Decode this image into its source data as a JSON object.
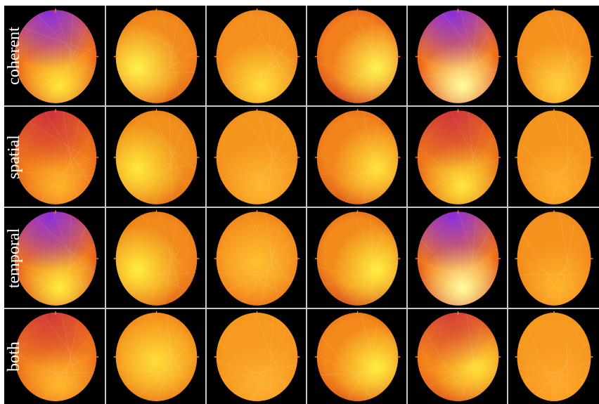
{
  "rows": [
    {
      "label": "coherent",
      "maps": [
        {
          "base": "#f47a1a",
          "blob": "#7a22ff",
          "blob_strength": 0.85,
          "bright": "#ffe83a",
          "bright_spot": "bottom",
          "dark": "#c8262e"
        },
        {
          "base": "#f28a1c",
          "blob": null,
          "blob_strength": 0,
          "bright": "#fff24a",
          "bright_spot": "left",
          "dark": "#e0541a"
        },
        {
          "base": "#f5901e",
          "blob": null,
          "blob_strength": 0,
          "bright": "#ffe03a",
          "bright_spot": "bottom",
          "dark": "#e36a18"
        },
        {
          "base": "#f27f1c",
          "blob": null,
          "blob_strength": 0,
          "bright": "#fff34d",
          "bright_spot": "right",
          "dark": "#c8262e"
        },
        {
          "base": "#f47a1a",
          "blob": "#7a22ff",
          "blob_strength": 0.85,
          "bright": "#ffffa0",
          "bright_spot": "bottom",
          "dark": "#c8262e"
        },
        {
          "base": "#f5921e",
          "blob": null,
          "blob_strength": 0,
          "bright": "#ffd23a",
          "bright_spot": "bottom",
          "dark": "#e86a18"
        }
      ]
    },
    {
      "label": "spatial",
      "maps": [
        {
          "base": "#f0781a",
          "blob": "#c2184a",
          "blob_strength": 0.7,
          "bright": "#ffb42a",
          "bright_spot": "bottom",
          "dark": "#d8441c"
        },
        {
          "base": "#f2901c",
          "blob": null,
          "blob_strength": 0,
          "bright": "#ffe83a",
          "bright_spot": "left",
          "dark": "#e0621a"
        },
        {
          "base": "#f5961e",
          "blob": null,
          "blob_strength": 0,
          "bright": "#ffb830",
          "bright_spot": "bottom",
          "dark": "#ec7a1a"
        },
        {
          "base": "#f2841c",
          "blob": null,
          "blob_strength": 0,
          "bright": "#ffe43a",
          "bright_spot": "right",
          "dark": "#d8441c"
        },
        {
          "base": "#f07e1a",
          "blob": "#c2184a",
          "blob_strength": 0.7,
          "bright": "#ffe83a",
          "bright_spot": "bottom",
          "dark": "#d8441c"
        },
        {
          "base": "#f5961e",
          "blob": null,
          "blob_strength": 0,
          "bright": "#ffae2a",
          "bright_spot": "bottom",
          "dark": "#ec801a"
        }
      ]
    },
    {
      "label": "temporal",
      "maps": [
        {
          "base": "#f0741a",
          "blob": "#7a22ff",
          "blob_strength": 0.85,
          "bright": "#ffee3c",
          "bright_spot": "bottom",
          "dark": "#c8262e"
        },
        {
          "base": "#f28a1c",
          "blob": null,
          "blob_strength": 0,
          "bright": "#ffee3c",
          "bright_spot": "left",
          "dark": "#e0581a"
        },
        {
          "base": "#f5901e",
          "blob": null,
          "blob_strength": 0,
          "bright": "#ffc030",
          "bright_spot": "center",
          "dark": "#e8681a"
        },
        {
          "base": "#f28a1c",
          "blob": null,
          "blob_strength": 0,
          "bright": "#ffee3c",
          "bright_spot": "right",
          "dark": "#cc3424"
        },
        {
          "base": "#f27a1a",
          "blob": "#7a22ff",
          "blob_strength": 0.85,
          "bright": "#ffffa0",
          "bright_spot": "bottom",
          "dark": "#c8262e"
        },
        {
          "base": "#f5921e",
          "blob": null,
          "blob_strength": 0,
          "bright": "#ffb42a",
          "bright_spot": "bottom",
          "dark": "#e8701a"
        }
      ]
    },
    {
      "label": "both",
      "maps": [
        {
          "base": "#f27e1a",
          "blob": "#c2184a",
          "blob_strength": 0.65,
          "bright": "#ffb82c",
          "bright_spot": "bottom",
          "dark": "#d8441c"
        },
        {
          "base": "#f5961e",
          "blob": null,
          "blob_strength": 0,
          "bright": "#ffde38",
          "bright_spot": "center",
          "dark": "#e8701a"
        },
        {
          "base": "#f79a20",
          "blob": null,
          "blob_strength": 0,
          "bright": "#ffb030",
          "bright_spot": "bottom",
          "dark": "#ef8a1c"
        },
        {
          "base": "#f48a1c",
          "blob": null,
          "blob_strength": 0,
          "bright": "#ffee3c",
          "bright_spot": "right",
          "dark": "#d8441c"
        },
        {
          "base": "#f4881c",
          "blob": "#c2184a",
          "blob_strength": 0.6,
          "bright": "#ffe038",
          "bright_spot": "right",
          "dark": "#d8441c"
        },
        {
          "base": "#f79a20",
          "blob": null,
          "blob_strength": 0,
          "bright": "#ffa82a",
          "bright_spot": "bottom",
          "dark": "#f0901c"
        }
      ]
    }
  ]
}
